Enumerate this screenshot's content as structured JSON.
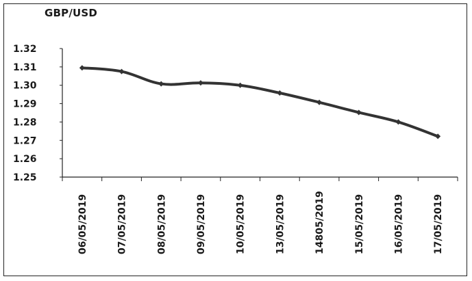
{
  "chart_data": {
    "type": "line",
    "title": "GBP/USD",
    "xlabel": "",
    "ylabel": "",
    "categories": [
      "06/05/2019",
      "07/05/2019",
      "08/05/2019",
      "09/05/2019",
      "10/05/2019",
      "13/05/2019",
      "14805/2019",
      "15/05/2019",
      "16/05/2019",
      "17/05/2019"
    ],
    "series": [
      {
        "values": [
          1.3095,
          1.3075,
          1.3008,
          1.3013,
          1.3,
          1.2958,
          1.2907,
          1.2852,
          1.28,
          1.2722
        ]
      }
    ],
    "yticks": [
      "1.32",
      "1.31",
      "1.30",
      "1.29",
      "1.28",
      "1.27",
      "1.26",
      "1.25"
    ],
    "ylim": [
      1.25,
      1.32
    ],
    "grid": false,
    "legend": "none",
    "line_color": "#333333"
  }
}
